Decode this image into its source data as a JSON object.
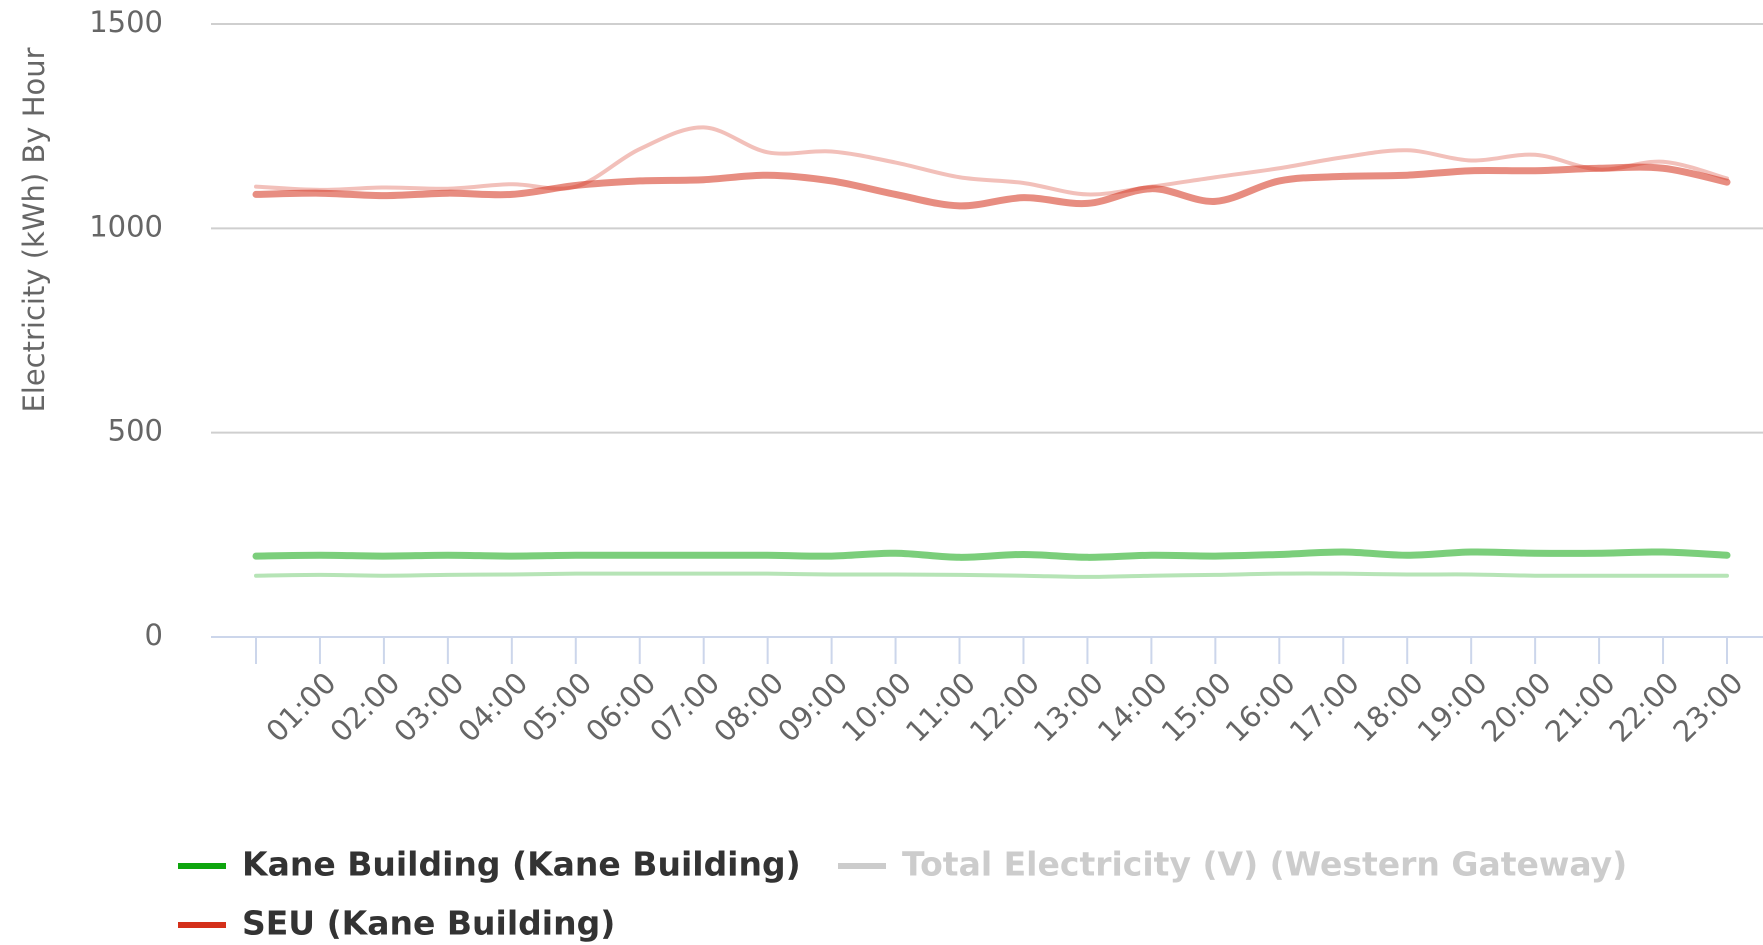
{
  "chart_data": {
    "type": "line",
    "y_axis_label": "Electricity (kWh) By Hour",
    "categories": [
      null,
      "01:00",
      "02:00",
      "03:00",
      "04:00",
      "05:00",
      "06:00",
      "07:00",
      "08:00",
      "09:00",
      "10:00",
      "11:00",
      "12:00",
      "13:00",
      "14:00",
      "15:00",
      "16:00",
      "17:00",
      "18:00",
      "19:00",
      "20:00",
      "21:00",
      "22:00",
      "23:00"
    ],
    "series": [
      {
        "name": "Kane Building (Kane Building)",
        "color": "#0ea50e",
        "opacity": 0.55,
        "values": [
          198,
          200,
          198,
          200,
          198,
          200,
          200,
          200,
          200,
          198,
          205,
          195,
          202,
          195,
          200,
          198,
          202,
          208,
          200,
          208,
          205,
          205,
          208,
          200
        ]
      },
      {
        "name": "Total Electricity (V) (Western Gateway)",
        "color": "#cccccc",
        "visible": false,
        "values": [
          null,
          null,
          null,
          null,
          null,
          null,
          null,
          null,
          null,
          null,
          null,
          null,
          null,
          null,
          null,
          null,
          null,
          null,
          null,
          null,
          null,
          null,
          null,
          null
        ]
      },
      {
        "name": "SEU (Kane Building)",
        "color": "#d4301a",
        "opacity": 0.55,
        "values": [
          1083,
          1086,
          1080,
          1086,
          1083,
          1105,
          1116,
          1119,
          1130,
          1116,
          1083,
          1055,
          1075,
          1061,
          1097,
          1066,
          1116,
          1127,
          1130,
          1141,
          1141,
          1147,
          1147,
          1113
        ]
      },
      {
        "color": "#0ea50e",
        "opacity": 0.3,
        "values": [
          150,
          152,
          150,
          152,
          153,
          155,
          155,
          155,
          155,
          153,
          153,
          152,
          150,
          147,
          150,
          152,
          155,
          155,
          153,
          153,
          150,
          150,
          150,
          150
        ]
      },
      {
        "color": "#d4301a",
        "opacity": 0.3,
        "values": [
          1102,
          1094,
          1100,
          1097,
          1108,
          1102,
          1194,
          1247,
          1186,
          1188,
          1161,
          1125,
          1111,
          1083,
          1102,
          1125,
          1147,
          1174,
          1191,
          1166,
          1180,
          1144,
          1163,
          1122
        ]
      }
    ],
    "ylim": [
      0,
      1500
    ],
    "yticks": [
      0,
      500,
      1000,
      1500
    ],
    "grid": true
  }
}
